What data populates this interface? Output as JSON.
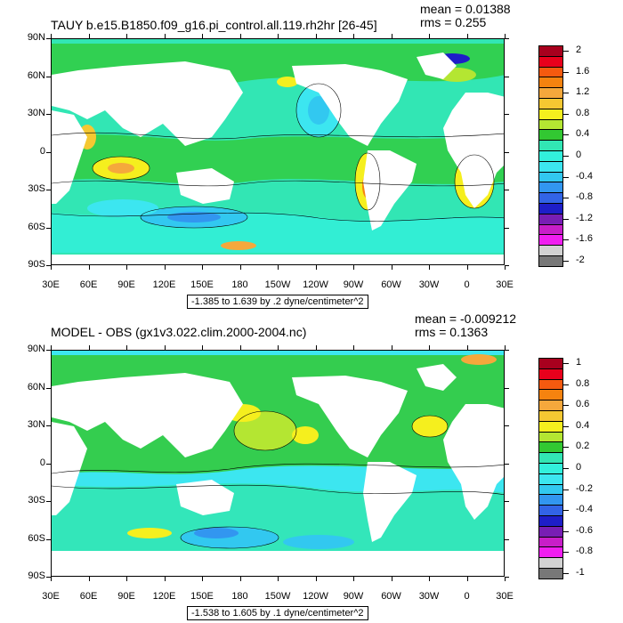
{
  "panels": [
    {
      "title": "TAUY b.e15.B1850.f09_g16.pi_control.all.119.rh2hr [26-45]",
      "mean": "mean = 0.01388",
      "rms": "rms = 0.255",
      "range_text": "-1.385 to 1.639 by .2 dyne/centimeter^2",
      "lat_labels": [
        "90N",
        "60N",
        "30N",
        "0",
        "30S",
        "60S",
        "90S"
      ],
      "lon_labels": [
        "30E",
        "60E",
        "90E",
        "120E",
        "150E",
        "180",
        "150W",
        "120W",
        "90W",
        "60W",
        "30W",
        "0",
        "30E"
      ],
      "colorbar_labels": [
        "2",
        "1.6",
        "1.2",
        "0.8",
        "0.4",
        "0",
        "-0.4",
        "-0.8",
        "-1.2",
        "-1.6",
        "-2"
      ],
      "colorbar_colors": [
        "#a8001e",
        "#e8001c",
        "#f55a0f",
        "#f5830f",
        "#f5a83c",
        "#f5c832",
        "#f5ef1e",
        "#b4e632",
        "#32c832",
        "#32e6b4",
        "#32f0dc",
        "#3ce6f0",
        "#32c8f0",
        "#3296f0",
        "#3264e6",
        "#1e1ec8",
        "#781eb4",
        "#c81ec8",
        "#f01ef0",
        "#d2d2d2",
        "#787878"
      ]
    },
    {
      "title": "MODEL - OBS (gx1v3.022.clim.2000-2004.nc)",
      "mean": "mean = -0.009212",
      "rms": "rms = 0.1363",
      "range_text": "-1.538 to 1.605 by .1 dyne/centimeter^2",
      "lat_labels": [
        "90N",
        "60N",
        "30N",
        "0",
        "30S",
        "60S",
        "90S"
      ],
      "lon_labels": [
        "30E",
        "60E",
        "90E",
        "120E",
        "150E",
        "180",
        "150W",
        "120W",
        "90W",
        "60W",
        "30W",
        "0",
        "30E"
      ],
      "colorbar_labels": [
        "1",
        "0.8",
        "0.6",
        "0.4",
        "0.2",
        "0",
        "-0.2",
        "-0.4",
        "-0.6",
        "-0.8",
        "-1"
      ],
      "colorbar_colors": [
        "#a8001e",
        "#e8001c",
        "#f55a0f",
        "#f5830f",
        "#f5a83c",
        "#f5c832",
        "#f5ef1e",
        "#b4e632",
        "#32c832",
        "#32e6b4",
        "#32f0dc",
        "#3ce6f0",
        "#32c8f0",
        "#3296f0",
        "#3264e6",
        "#1e1ec8",
        "#781eb4",
        "#c81ec8",
        "#f01ef0",
        "#d2d2d2",
        "#787878"
      ]
    }
  ],
  "colors": {
    "land": "#ffffff",
    "ocean_top": "#32e6b4",
    "ocean_bottom": "#32c832",
    "contour": "#000000"
  }
}
